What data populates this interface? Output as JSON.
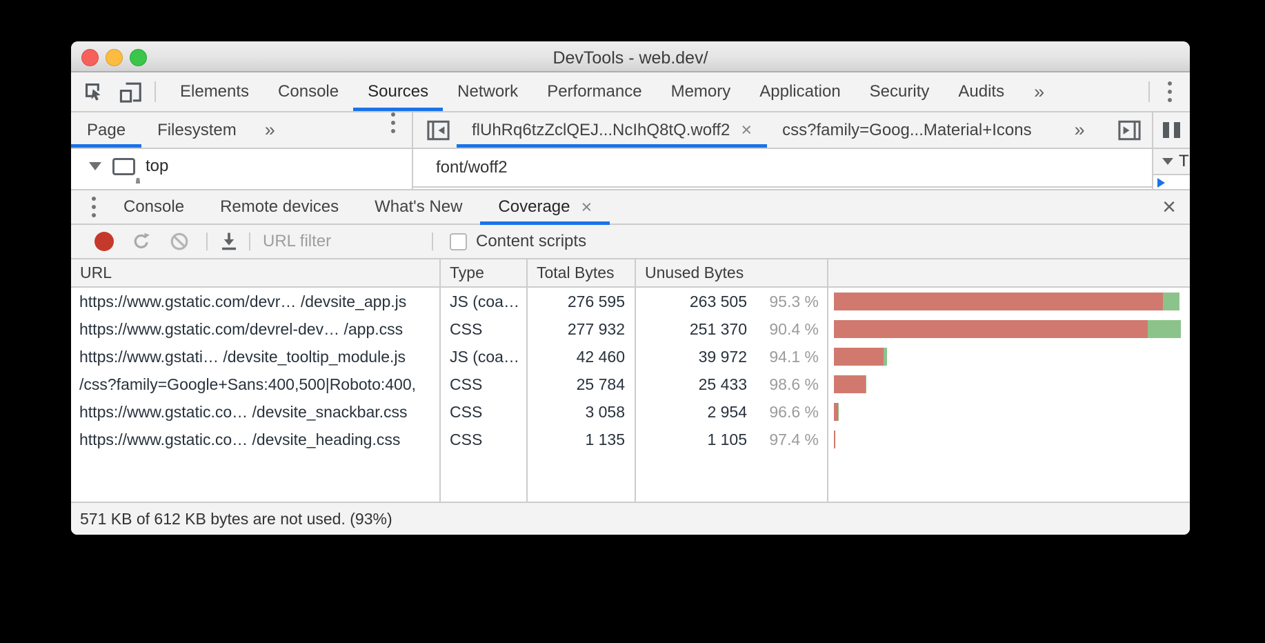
{
  "window": {
    "title": "DevTools - web.dev/"
  },
  "main_tabs": {
    "items": [
      "Elements",
      "Console",
      "Sources",
      "Network",
      "Performance",
      "Memory",
      "Application",
      "Security",
      "Audits"
    ],
    "active": "Sources",
    "overflow_glyph": "»"
  },
  "sources": {
    "sidebar_tabs": {
      "page": "Page",
      "filesystem": "Filesystem",
      "overflow_glyph": "»"
    },
    "tree_root": "top",
    "file_tabs": {
      "tab1": "flUhRq6tzZclQEJ...NcIhQ8tQ.woff2",
      "tab1_close": "×",
      "tab2": "css?family=Goog...Material+Icons",
      "overflow_glyph": "»"
    },
    "mime_type": "font/woff2",
    "threads_label_clipped": "Th"
  },
  "drawer": {
    "tabs": [
      "Console",
      "Remote devices",
      "What's New",
      "Coverage"
    ],
    "active": "Coverage",
    "coverage_close": "×",
    "close_glyph": "×",
    "toolbar": {
      "url_filter_placeholder": "URL filter",
      "content_scripts_label": "Content scripts"
    }
  },
  "coverage_table": {
    "columns": [
      "URL",
      "Type",
      "Total Bytes",
      "Unused Bytes"
    ],
    "rows": [
      {
        "url": "https://www.gstatic.com/devr… /devsite_app.js",
        "type": "JS (coa…",
        "total_bytes": "276 595",
        "unused_bytes": "263 505",
        "unused_pct": "95.3 %",
        "total_n": 276595,
        "unused_n": 263505
      },
      {
        "url": "https://www.gstatic.com/devrel-dev… /app.css",
        "type": "CSS",
        "total_bytes": "277 932",
        "unused_bytes": "251 370",
        "unused_pct": "90.4 %",
        "total_n": 277932,
        "unused_n": 251370
      },
      {
        "url": "https://www.gstati… /devsite_tooltip_module.js",
        "type": "JS (coa…",
        "total_bytes": "42 460",
        "unused_bytes": "39 972",
        "unused_pct": "94.1 %",
        "total_n": 42460,
        "unused_n": 39972
      },
      {
        "url": "/css?family=Google+Sans:400,500|Roboto:400,",
        "type": "CSS",
        "total_bytes": "25 784",
        "unused_bytes": "25 433",
        "unused_pct": "98.6 %",
        "total_n": 25784,
        "unused_n": 25433
      },
      {
        "url": "https://www.gstatic.co… /devsite_snackbar.css",
        "type": "CSS",
        "total_bytes": "3 058",
        "unused_bytes": "2 954",
        "unused_pct": "96.6 %",
        "total_n": 3058,
        "unused_n": 2954
      },
      {
        "url": "https://www.gstatic.co…  /devsite_heading.css",
        "type": "CSS",
        "total_bytes": "1 135",
        "unused_bytes": "1 105",
        "unused_pct": "97.4 %",
        "total_n": 1135,
        "unused_n": 1105
      }
    ],
    "status": "571 KB of 612 KB bytes are not used. (93%)"
  },
  "colors": {
    "accent_blue": "#1a73e8",
    "bar_unused_red": "#d1796f",
    "bar_used_green": "#8bc38a",
    "record_red": "#c5392c"
  }
}
